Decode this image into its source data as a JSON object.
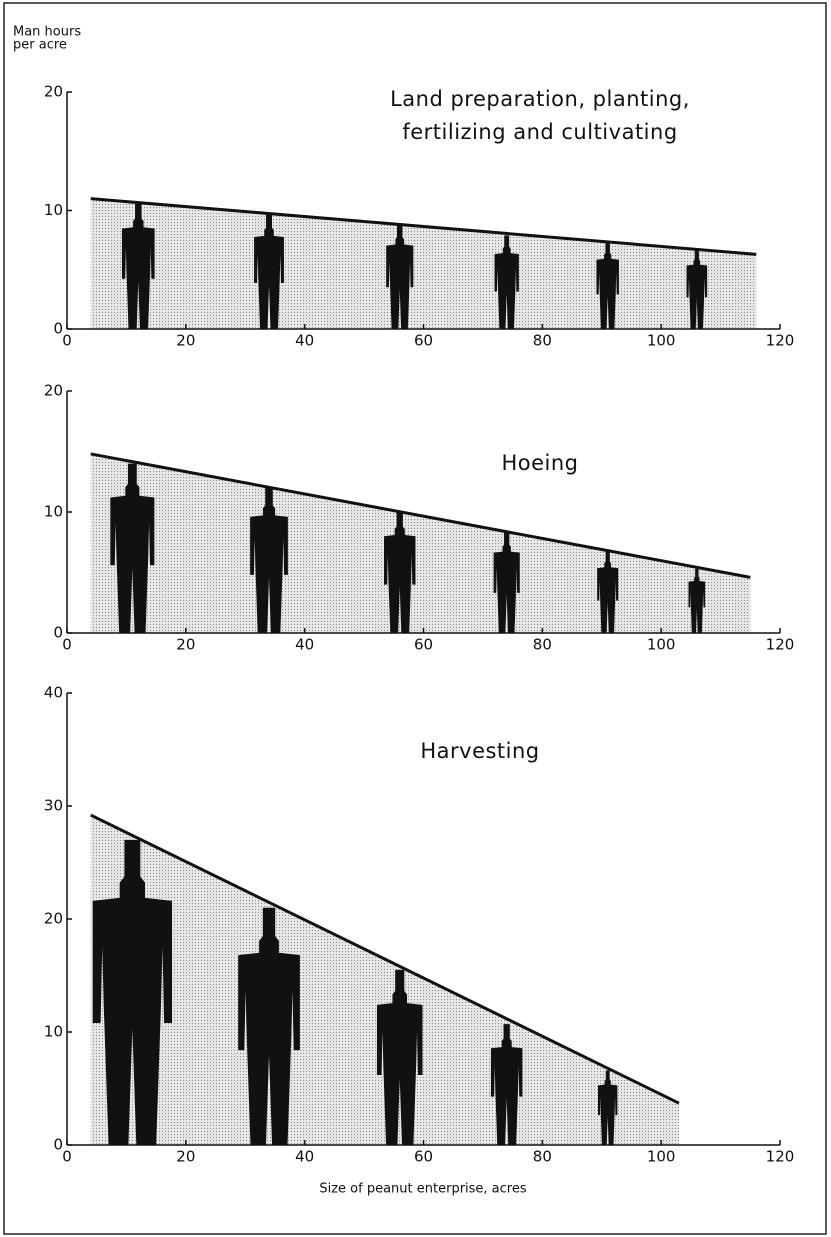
{
  "chart_data": [
    {
      "type": "pictograph-area",
      "title": [
        "Land preparation, planting,",
        "fertilizing and cultivating"
      ],
      "y_label": [
        "Man hours",
        "per acre"
      ],
      "line": {
        "x": [
          4,
          116
        ],
        "values": [
          11,
          6.3
        ]
      },
      "figures": {
        "x": [
          12,
          34,
          56,
          74,
          91,
          106
        ],
        "values": [
          10.6,
          9.7,
          8.8,
          7.9,
          7.3,
          6.7
        ]
      },
      "xlim": [
        0,
        120
      ],
      "xticks": [
        0,
        20,
        40,
        60,
        80,
        100,
        120
      ],
      "ylim": [
        0,
        20
      ],
      "yticks": [
        0,
        10,
        20
      ],
      "color": "#111111"
    },
    {
      "type": "pictograph-area",
      "title": [
        "Hoeing"
      ],
      "line": {
        "x": [
          4,
          115
        ],
        "values": [
          14.8,
          4.6
        ]
      },
      "figures": {
        "x": [
          11,
          34,
          56,
          74,
          91,
          106
        ],
        "values": [
          14,
          12,
          10,
          8.3,
          6.7,
          5.3
        ]
      },
      "xlim": [
        0,
        120
      ],
      "xticks": [
        0,
        20,
        40,
        60,
        80,
        100,
        120
      ],
      "ylim": [
        0,
        20
      ],
      "yticks": [
        0,
        10,
        20
      ],
      "color": "#111111"
    },
    {
      "type": "pictograph-area",
      "title": [
        "Harvesting"
      ],
      "x_label": "Size of peanut enterprise, acres",
      "line": {
        "x": [
          4,
          103
        ],
        "values": [
          29.2,
          3.7
        ]
      },
      "figures": {
        "x": [
          11,
          34,
          56,
          74,
          91
        ],
        "values": [
          27,
          21,
          15.5,
          10.7,
          6.6
        ]
      },
      "xlim": [
        0,
        120
      ],
      "xticks": [
        0,
        20,
        40,
        60,
        80,
        100,
        120
      ],
      "ylim": [
        0,
        40
      ],
      "yticks": [
        0,
        10,
        20,
        30,
        40
      ],
      "color": "#111111"
    }
  ]
}
